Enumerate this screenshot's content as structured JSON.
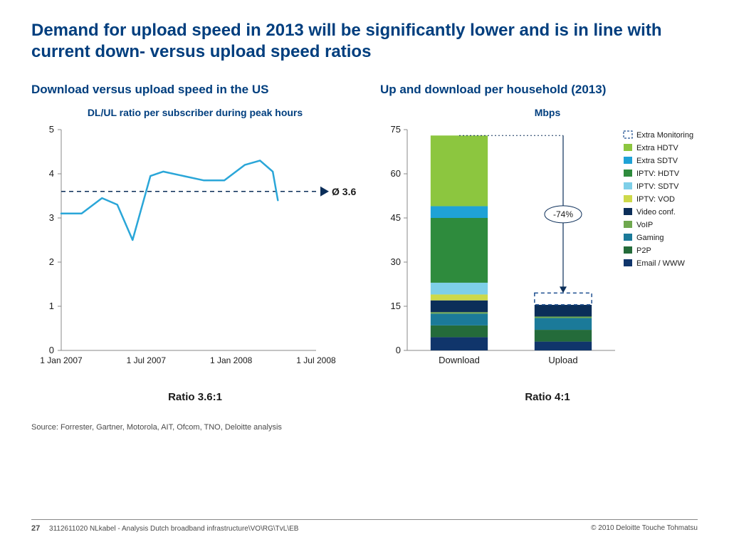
{
  "title": "Demand for upload speed in 2013 will be significantly lower and is in line with current down- versus upload speed ratios",
  "source": "Source: Forrester, Gartner, Motorola, AIT, Ofcom, TNO, Deloitte analysis",
  "footer": {
    "page": "27",
    "left": "3112611020 NLkabel -  Analysis Dutch broadband infrastructure\\VO\\RG\\TvL\\EB",
    "right": "© 2010 Deloitte Touche Tohmatsu"
  },
  "colors": {
    "brand": "#003e7e",
    "line": "#2aa6d8",
    "axis": "#8a8a8a",
    "text": "#1a1a1a"
  },
  "line_chart": {
    "type": "line",
    "title": "Download versus upload speed in the US",
    "subtitle": "DL/UL ratio per subscriber during peak hours",
    "ratio_label": "Ratio 3.6:1",
    "ylim": [
      0,
      5
    ],
    "ytick_step": 1,
    "x_labels": [
      "1 Jan 2007",
      "1 Jul 2007",
      "1 Jan 2008",
      "1 Jul 2008"
    ],
    "avg_label": "Ø 3.6",
    "avg_value": 3.6,
    "line_color": "#2aa6d8",
    "line_width": 2.5,
    "points": [
      {
        "x": 0.0,
        "y": 3.1
      },
      {
        "x": 0.08,
        "y": 3.1
      },
      {
        "x": 0.16,
        "y": 3.45
      },
      {
        "x": 0.22,
        "y": 3.3
      },
      {
        "x": 0.28,
        "y": 2.5
      },
      {
        "x": 0.35,
        "y": 3.95
      },
      {
        "x": 0.4,
        "y": 4.05
      },
      {
        "x": 0.48,
        "y": 3.95
      },
      {
        "x": 0.56,
        "y": 3.85
      },
      {
        "x": 0.64,
        "y": 3.85
      },
      {
        "x": 0.72,
        "y": 4.2
      },
      {
        "x": 0.78,
        "y": 4.3
      },
      {
        "x": 0.83,
        "y": 4.05
      },
      {
        "x": 0.85,
        "y": 3.4
      }
    ]
  },
  "bar_chart": {
    "type": "stacked-bar",
    "title": "Up and download per household (2013)",
    "subtitle": "Mbps",
    "ratio_label": "Ratio 4:1",
    "ylim": [
      0,
      75
    ],
    "ytick_step": 15,
    "categories": [
      "Download",
      "Upload"
    ],
    "delta_label": "-74%",
    "segments": [
      {
        "name": "Extra Monitoring",
        "color": "#ffffff",
        "outline": "#1e4f90",
        "dashed": true
      },
      {
        "name": "Extra HDTV",
        "color": "#8cc63f"
      },
      {
        "name": "Extra SDTV",
        "color": "#1fa2d6"
      },
      {
        "name": "IPTV: HDTV",
        "color": "#2e8b3d"
      },
      {
        "name": "IPTV: SDTV",
        "color": "#7ecfe8"
      },
      {
        "name": "IPTV: VOD",
        "color": "#cdd94a"
      },
      {
        "name": "Video conf.",
        "color": "#0b2e59"
      },
      {
        "name": "VoIP",
        "color": "#6fa84f"
      },
      {
        "name": "Gaming",
        "color": "#1b7a99"
      },
      {
        "name": "P2P",
        "color": "#246b3a"
      },
      {
        "name": "Email / WWW",
        "color": "#10356b"
      }
    ],
    "bars": {
      "Download": [
        0.0,
        24.0,
        4.0,
        22.0,
        4.0,
        2.0,
        4.0,
        0.5,
        4.0,
        4.0,
        4.5
      ],
      "Upload": [
        4.0,
        0.0,
        0.0,
        0.0,
        0.0,
        0.0,
        4.0,
        0.5,
        4.0,
        4.0,
        3.0
      ]
    },
    "dotted_color": "#0b2e59",
    "bar_width": 0.55
  }
}
